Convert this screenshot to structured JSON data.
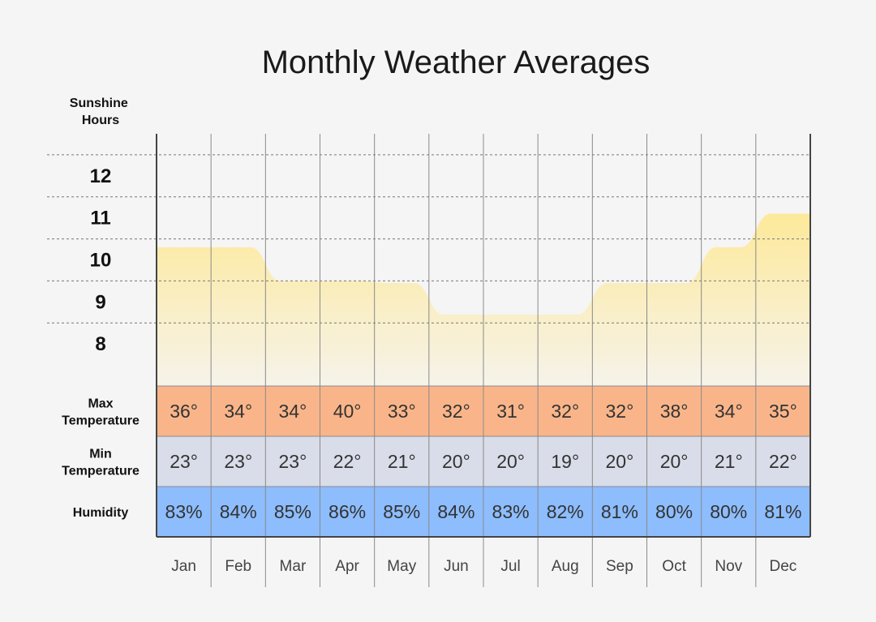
{
  "chart_data": {
    "type": "area",
    "title": "Monthly Weather Averages",
    "ylabel": [
      "Sunshine",
      "Hours"
    ],
    "yticks": [
      12,
      11,
      10,
      9,
      8
    ],
    "ylim": [
      7,
      13
    ],
    "grid": true,
    "categories": [
      "Jan",
      "Feb",
      "Mar",
      "Apr",
      "May",
      "Jun",
      "Jul",
      "Aug",
      "Sep",
      "Oct",
      "Nov",
      "Dec"
    ],
    "series": [
      {
        "values": [
          10.3,
          10.3,
          9.5,
          9.5,
          9.45,
          8.7,
          8.7,
          8.7,
          9.45,
          9.45,
          10.3,
          11.1
        ]
      }
    ],
    "rows": [
      {
        "label": [
          "Max",
          "Temperature"
        ],
        "color": "#f9b589",
        "values": [
          "36°",
          "34°",
          "34°",
          "40°",
          "33°",
          "32°",
          "31°",
          "32°",
          "32°",
          "38°",
          "34°",
          "35°"
        ]
      },
      {
        "label": [
          "Min",
          "Temperature"
        ],
        "color": "#d9dce9",
        "values": [
          "23°",
          "23°",
          "23°",
          "22°",
          "21°",
          "20°",
          "20°",
          "19°",
          "20°",
          "20°",
          "21°",
          "22°"
        ]
      },
      {
        "label": [
          "Humidity"
        ],
        "color": "#8dbdfd",
        "values": [
          "83%",
          "84%",
          "85%",
          "86%",
          "85%",
          "84%",
          "83%",
          "82%",
          "81%",
          "80%",
          "80%",
          "81%"
        ]
      }
    ],
    "colors": {
      "area_top": "#fde99a",
      "area_bottom": "#f6f3ea",
      "grid": "#777777",
      "divider": "#8a8a8a"
    }
  }
}
